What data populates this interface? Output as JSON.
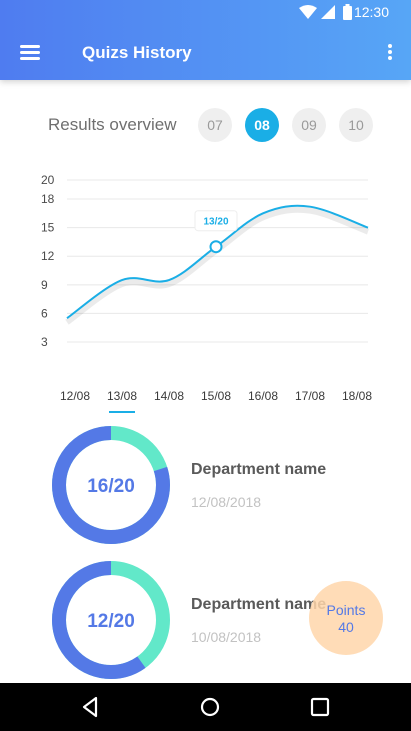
{
  "status_bar": {
    "time": "12:30"
  },
  "app_bar": {
    "title": "Quizs History"
  },
  "overview": {
    "label": "Results overview",
    "weeks": [
      {
        "label": "07",
        "active": false
      },
      {
        "label": "08",
        "active": true
      },
      {
        "label": "09",
        "active": false
      },
      {
        "label": "10",
        "active": false
      }
    ]
  },
  "chart_data": {
    "type": "line",
    "x": [
      "12/08",
      "13/08",
      "14/08",
      "15/08",
      "16/08",
      "17/08",
      "18/08"
    ],
    "series": [
      {
        "values": [
          5.5,
          9.5,
          9.5,
          13,
          16.5,
          17.2,
          15
        ]
      }
    ],
    "y_ticks": [
      "20",
      "18",
      "15",
      "12",
      "9",
      "6",
      "3"
    ],
    "ylim": [
      3,
      20
    ],
    "grid": true,
    "annotation": {
      "text": "13/20",
      "x": "15/08",
      "y": 13
    },
    "selected_x": "13/08",
    "colors": {
      "line": "#1aaee6",
      "grid": "#e8e8e8"
    }
  },
  "scores": [
    {
      "score_label": "16/20",
      "fraction": 0.8,
      "department": "Department name",
      "date": "12/08/2018"
    },
    {
      "score_label": "12/20",
      "fraction": 0.6,
      "department": "Department name",
      "date": "10/08/2018"
    }
  ],
  "points": {
    "label": "Points",
    "value": "40"
  },
  "colors": {
    "primary": "#5479e6",
    "accent": "#1aaee6",
    "ring_light": "#62e8c9"
  }
}
